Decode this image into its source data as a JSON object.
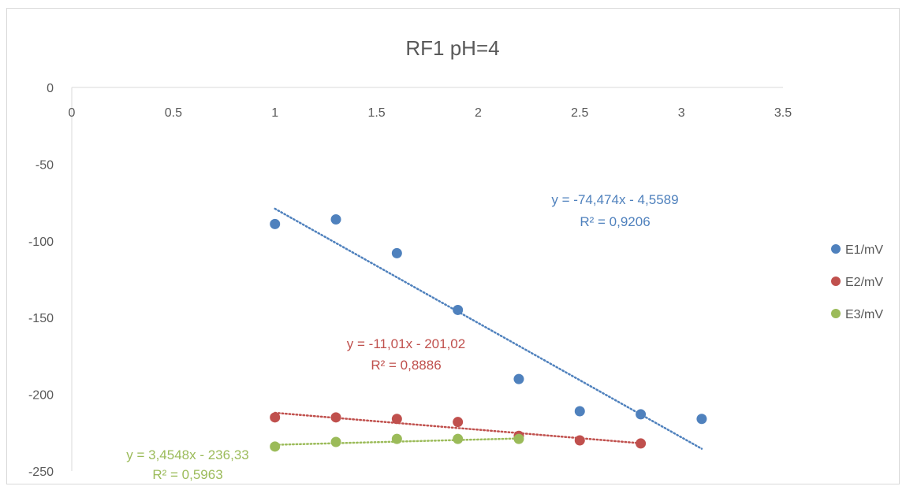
{
  "chart_data": {
    "type": "scatter",
    "title": "RF1 pH=4",
    "xlabel": "",
    "ylabel": "",
    "xlim": [
      0,
      3.5
    ],
    "ylim": [
      -250,
      0
    ],
    "x_ticks": [
      "0",
      "0.5",
      "1",
      "1.5",
      "2",
      "2.5",
      "3",
      "3.5"
    ],
    "y_ticks": [
      "0",
      "-50",
      "-100",
      "-150",
      "-200",
      "-250"
    ],
    "grid": false,
    "legend_position": "right",
    "series": [
      {
        "name": "E1/mV",
        "color": "#4f81bd",
        "x": [
          1,
          1.3,
          1.6,
          1.9,
          2.2,
          2.5,
          2.8,
          3.1
        ],
        "y": [
          -89,
          -86,
          -108,
          -145,
          -190,
          -211,
          -213,
          -216
        ],
        "trendline": {
          "slope": -74.474,
          "intercept": -4.5589,
          "x_range": [
            1,
            3.1
          ],
          "equation": "y = -74,474x - 4,5589",
          "r2": "R² = 0,9206"
        }
      },
      {
        "name": "E2/mV",
        "color": "#c0504d",
        "x": [
          1,
          1.3,
          1.6,
          1.9,
          2.2,
          2.5,
          2.8
        ],
        "y": [
          -215,
          -215,
          -216,
          -218,
          -227,
          -230,
          -232
        ],
        "trendline": {
          "slope": -11.01,
          "intercept": -201.02,
          "x_range": [
            1,
            2.8
          ],
          "equation": "y = -11,01x - 201,02",
          "r2": "R² = 0,8886"
        }
      },
      {
        "name": "E3/mV",
        "color": "#9bbb59",
        "x": [
          1,
          1.3,
          1.6,
          1.9,
          2.2
        ],
        "y": [
          -234,
          -231,
          -229,
          -229,
          -229
        ],
        "trendline": {
          "slope": 3.4548,
          "intercept": -236.33,
          "x_range": [
            1,
            2.2
          ],
          "equation": "y = 3,4548x - 236,33",
          "r2": "R² = 0,5963"
        }
      }
    ]
  }
}
